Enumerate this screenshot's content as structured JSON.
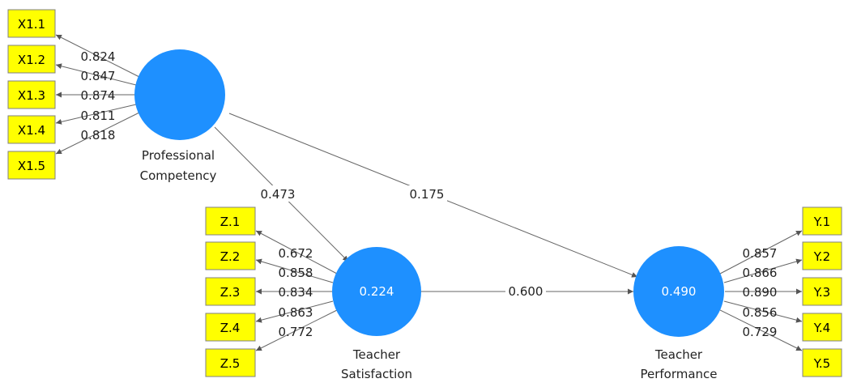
{
  "latent": {
    "pc": {
      "label_lines": [
        "Professional",
        "Competency"
      ],
      "value": ""
    },
    "ts": {
      "label_lines": [
        "Teacher",
        "Satisfaction"
      ],
      "value": "0.224"
    },
    "tp": {
      "label_lines": [
        "Teacher",
        "Performance"
      ],
      "value": "0.490"
    }
  },
  "indicators": {
    "pc": [
      {
        "label": "X1.1",
        "loading": "0.824"
      },
      {
        "label": "X1.2",
        "loading": "0.847"
      },
      {
        "label": "X1.3",
        "loading": "0.874"
      },
      {
        "label": "X1.4",
        "loading": "0.811"
      },
      {
        "label": "X1.5",
        "loading": "0.818"
      }
    ],
    "ts": [
      {
        "label": "Z.1",
        "loading": "0.672"
      },
      {
        "label": "Z.2",
        "loading": "0.858"
      },
      {
        "label": "Z.3",
        "loading": "0.834"
      },
      {
        "label": "Z.4",
        "loading": "0.863"
      },
      {
        "label": "Z.5",
        "loading": "0.772"
      }
    ],
    "tp": [
      {
        "label": "Y.1",
        "loading": "0.857"
      },
      {
        "label": "Y.2",
        "loading": "0.866"
      },
      {
        "label": "Y.3",
        "loading": "0.890"
      },
      {
        "label": "Y.4",
        "loading": "0.856"
      },
      {
        "label": "Y.5",
        "loading": "0.729"
      }
    ]
  },
  "paths": {
    "pc_ts": "0.473",
    "pc_tp": "0.175",
    "ts_tp": "0.600"
  },
  "colors": {
    "latent_fill": "#1e90ff",
    "indicator_fill": "#ffff00"
  }
}
